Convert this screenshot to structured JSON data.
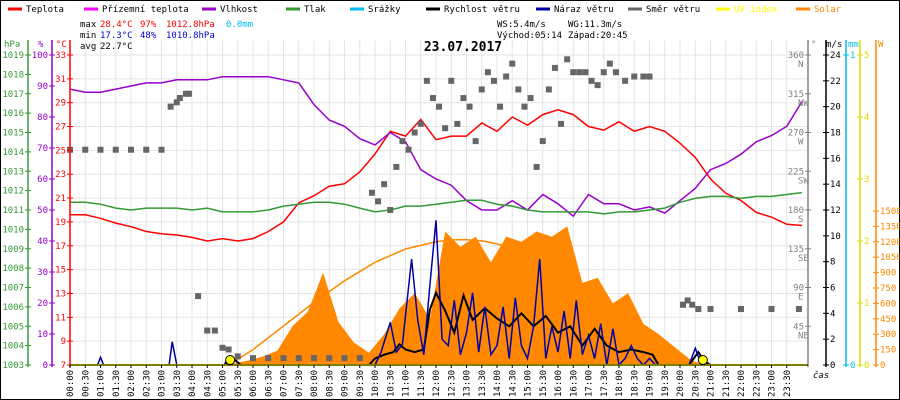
{
  "chart_data": {
    "type": "line",
    "title": "23.07.2017",
    "xlabel": "čas",
    "legend": {
      "placement": "top",
      "items": [
        {
          "name": "Teplota",
          "color": "#ff0000"
        },
        {
          "name": "Přízemní teplota",
          "color": "#ff00ff"
        },
        {
          "name": "Vlhkost",
          "color": "#9900cc"
        },
        {
          "name": "Tlak",
          "color": "#339933"
        },
        {
          "name": "Srážky",
          "color": "#00bbee"
        },
        {
          "name": "Rychlost větru",
          "color": "#000000"
        },
        {
          "name": "Náraz větru",
          "color": "#0000aa"
        },
        {
          "name": "Směr větru",
          "color": "#666666"
        },
        {
          "name": "UV index",
          "color": "#ffff00"
        },
        {
          "name": "Solar",
          "color": "#ff8800"
        }
      ]
    },
    "stats": {
      "max": {
        "label": "max",
        "temp": "28.4°C",
        "hum": "97%",
        "press": "1012.8hPa",
        "rain": "0.0mm"
      },
      "min": {
        "label": "min",
        "temp": "17.3°C",
        "hum": "48%",
        "press": "1010.8hPa"
      },
      "avg": {
        "label": "avg",
        "temp": "22.7°C"
      },
      "ws": "WS:5.4m/s",
      "wg": "WG:11.3m/s",
      "sunrise": "Východ:05:14",
      "sunset": "Západ:20:45"
    },
    "x_ticks": [
      "00:00",
      "00:30",
      "01:00",
      "01:30",
      "02:00",
      "02:30",
      "03:00",
      "03:30",
      "04:00",
      "04:30",
      "05:00",
      "05:30",
      "06:00",
      "06:30",
      "07:00",
      "07:30",
      "08:00",
      "08:30",
      "09:00",
      "09:30",
      "10:00",
      "10:30",
      "11:00",
      "11:30",
      "12:00",
      "12:30",
      "13:00",
      "13:30",
      "14:00",
      "14:30",
      "15:00",
      "15:30",
      "16:00",
      "16:30",
      "17:00",
      "17:30",
      "18:00",
      "18:30",
      "19:00",
      "19:30",
      "20:00",
      "20:30",
      "21:00",
      "21:30",
      "22:00",
      "22:30",
      "23:00",
      "23:30"
    ],
    "axes": {
      "pressure": {
        "unit": "hPa",
        "range": [
          1003,
          1019
        ],
        "ticks": [
          1003,
          1004,
          1005,
          1006,
          1007,
          1008,
          1009,
          1010,
          1011,
          1012,
          1013,
          1014,
          1015,
          1016,
          1017,
          1018,
          1019
        ],
        "color": "#339933"
      },
      "humidity": {
        "unit": "%",
        "range": [
          0,
          100
        ],
        "ticks": [
          0,
          10,
          20,
          30,
          40,
          50,
          60,
          70,
          80,
          90,
          100
        ],
        "color": "#9900cc"
      },
      "temperature": {
        "unit": "°C",
        "range": [
          7,
          33
        ],
        "ticks": [
          7,
          9,
          11,
          13,
          15,
          17,
          19,
          21,
          23,
          25,
          27,
          29,
          31,
          33
        ],
        "color": "#ff0000"
      },
      "direction": {
        "unit": "°",
        "range": [
          0,
          360
        ],
        "ticks": [
          {
            "v": 45,
            "l": "45",
            "d": "NE"
          },
          {
            "v": 90,
            "l": "90",
            "d": "E"
          },
          {
            "v": 135,
            "l": "135",
            "d": "SE"
          },
          {
            "v": 180,
            "l": "180",
            "d": "S"
          },
          {
            "v": 225,
            "l": "225",
            "d": "SW"
          },
          {
            "v": 270,
            "l": "270",
            "d": "W"
          },
          {
            "v": 315,
            "l": "315",
            "d": "NW"
          },
          {
            "v": 360,
            "l": "360",
            "d": "N"
          }
        ],
        "color": "#808080"
      },
      "wind": {
        "unit": "m/s",
        "range": [
          0,
          24
        ],
        "ticks": [
          0,
          2,
          4,
          6,
          8,
          10,
          12,
          14,
          16,
          18,
          20,
          22,
          24
        ],
        "color": "#000000"
      },
      "rain": {
        "unit": "mm",
        "range": [
          0,
          1
        ],
        "ticks": [
          0,
          1
        ],
        "color": "#00bbee"
      },
      "uv": {
        "unit": "",
        "range": [
          0,
          5
        ],
        "ticks": [
          0,
          1,
          2,
          3,
          4,
          5
        ],
        "color": "#dddd00"
      },
      "solar": {
        "unit": "W",
        "range": [
          0,
          3000
        ],
        "ticks": [
          0,
          150,
          300,
          450,
          600,
          750,
          900,
          1050,
          1200,
          1350,
          1500
        ],
        "color": "#ff8800"
      }
    },
    "series": [
      {
        "name": "Teplota",
        "axis": "temperature",
        "x": [
          0,
          0.5,
          1,
          1.5,
          2,
          2.5,
          3,
          3.5,
          4,
          4.5,
          5,
          5.5,
          6,
          6.5,
          7,
          7.5,
          8,
          8.5,
          9,
          9.5,
          10,
          10.5,
          11,
          11.5,
          12,
          12.5,
          13,
          13.5,
          14,
          14.5,
          15,
          15.5,
          16,
          16.5,
          17,
          17.5,
          18,
          18.5,
          19,
          19.5,
          20,
          20.5,
          21,
          21.5,
          22,
          22.5,
          23,
          23.5,
          24
        ],
        "values": [
          19.6,
          19.6,
          19.3,
          18.9,
          18.6,
          18.2,
          18.0,
          17.9,
          17.7,
          17.4,
          17.6,
          17.4,
          17.6,
          18.2,
          19.0,
          20.6,
          21.2,
          22.0,
          22.2,
          23.2,
          24.7,
          26.6,
          26.2,
          27.6,
          25.9,
          26.2,
          26.2,
          27.3,
          26.6,
          27.8,
          27.1,
          28.0,
          28.4,
          28.0,
          27.0,
          26.7,
          27.4,
          26.6,
          27.0,
          26.6,
          25.6,
          24.4,
          22.6,
          21.4,
          20.8,
          19.8,
          19.4,
          18.8,
          18.7
        ]
      },
      {
        "name": "Vlhkost",
        "axis": "humidity",
        "x": [
          0,
          0.5,
          1,
          1.5,
          2,
          2.5,
          3,
          3.5,
          4,
          4.5,
          5,
          5.5,
          6,
          6.5,
          7,
          7.5,
          8,
          8.5,
          9,
          9.5,
          10,
          10.5,
          11,
          11.5,
          12,
          12.5,
          13,
          13.5,
          14,
          14.5,
          15,
          15.5,
          16,
          16.5,
          17,
          17.5,
          18,
          18.5,
          19,
          19.5,
          20,
          20.5,
          21,
          21.5,
          22,
          22.5,
          23,
          23.5,
          24
        ],
        "values": [
          89,
          88,
          88,
          89,
          90,
          91,
          91,
          92,
          92,
          92,
          93,
          93,
          93,
          93,
          92,
          91,
          84,
          79,
          77,
          73,
          71,
          75,
          72,
          63,
          60,
          58,
          53,
          50,
          50,
          53,
          50,
          55,
          52,
          48,
          55,
          52,
          52,
          50,
          51,
          49,
          53,
          57,
          63,
          65,
          68,
          72,
          74,
          77,
          85
        ]
      },
      {
        "name": "Tlak",
        "axis": "pressure",
        "x": [
          0,
          0.5,
          1,
          1.5,
          2,
          2.5,
          3,
          3.5,
          4,
          4.5,
          5,
          5.5,
          6,
          6.5,
          7,
          7.5,
          8,
          8.5,
          9,
          9.5,
          10,
          10.5,
          11,
          11.5,
          12,
          12.5,
          13,
          13.5,
          14,
          14.5,
          15,
          15.5,
          16,
          16.5,
          17,
          17.5,
          18,
          18.5,
          19,
          19.5,
          20,
          20.5,
          21,
          21.5,
          22,
          22.5,
          23,
          23.5,
          24
        ],
        "values": [
          1011.4,
          1011.4,
          1011.3,
          1011.1,
          1011.0,
          1011.1,
          1011.1,
          1011.1,
          1011.0,
          1011.1,
          1010.9,
          1010.9,
          1010.9,
          1011.0,
          1011.2,
          1011.3,
          1011.4,
          1011.4,
          1011.3,
          1011.1,
          1010.9,
          1011.0,
          1011.2,
          1011.2,
          1011.3,
          1011.4,
          1011.5,
          1011.5,
          1011.3,
          1011.2,
          1011.0,
          1010.9,
          1010.9,
          1010.9,
          1010.9,
          1010.8,
          1010.9,
          1010.9,
          1011.0,
          1011.1,
          1011.4,
          1011.6,
          1011.7,
          1011.7,
          1011.6,
          1011.7,
          1011.7,
          1011.8,
          1011.9
        ]
      },
      {
        "name": "Rychlost větru",
        "axis": "wind",
        "x": [
          5.1,
          5.3,
          5.6,
          6,
          7,
          8,
          9,
          9.8,
          10.0,
          10.3,
          10.6,
          10.8,
          11.0,
          11.3,
          11.6,
          11.8,
          12.0,
          12.3,
          12.6,
          12.9,
          13.2,
          13.6,
          14.0,
          14.4,
          14.8,
          15.2,
          15.6,
          16.0,
          16.4,
          16.8,
          17.2,
          17.6,
          18.0,
          18.4,
          18.8,
          19.1,
          19.3,
          19.6,
          20.0,
          20.3,
          20.6,
          20.8,
          21.0
        ],
        "values": [
          0,
          0.6,
          0,
          0,
          0,
          0,
          0,
          0,
          0.5,
          0.8,
          1.0,
          1.6,
          1.2,
          1.0,
          1.2,
          4.3,
          5.6,
          4.2,
          2.5,
          5.4,
          3.5,
          4.4,
          3.6,
          3.0,
          4.0,
          3.0,
          3.8,
          2.5,
          3.0,
          1.5,
          2.8,
          1.5,
          1.0,
          1.2,
          1.0,
          0.8,
          0,
          0,
          0,
          0,
          1.0,
          0.3,
          0
        ]
      },
      {
        "name": "Náraz větru",
        "axis": "wind",
        "x": [
          0.9,
          1.0,
          1.1,
          3.25,
          3.35,
          3.5,
          5.05,
          5.2,
          5.35,
          10.0,
          10.2,
          10.5,
          10.7,
          10.9,
          11.2,
          11.4,
          11.6,
          11.8,
          12.0,
          12.2,
          12.4,
          12.6,
          12.8,
          13.0,
          13.2,
          13.4,
          13.6,
          13.8,
          14.0,
          14.2,
          14.4,
          14.6,
          14.8,
          15.0,
          15.2,
          15.4,
          15.6,
          15.8,
          16.0,
          16.2,
          16.4,
          16.6,
          16.8,
          17.0,
          17.2,
          17.4,
          17.6,
          17.8,
          18.0,
          18.2,
          18.4,
          18.6,
          18.8,
          19.0,
          19.2,
          20.3,
          20.5,
          20.7
        ],
        "values": [
          0,
          0.6,
          0,
          0,
          1.8,
          0,
          0,
          0.6,
          0,
          0,
          1.0,
          3.3,
          1.0,
          1.6,
          8.2,
          3.5,
          0.8,
          6.2,
          11.2,
          2.0,
          1.5,
          5.0,
          0.8,
          2.5,
          5.6,
          1.0,
          4.5,
          0.8,
          1.5,
          4.5,
          0.5,
          5.2,
          1.5,
          0.5,
          3.0,
          8.2,
          0.5,
          3.0,
          1.0,
          4.2,
          0.5,
          5.0,
          0.8,
          2.3,
          0.5,
          3.2,
          0,
          2.8,
          0,
          0.5,
          1.5,
          0.5,
          0,
          0.5,
          0,
          0,
          1.3,
          0
        ]
      },
      {
        "name": "Solar",
        "axis": "solar",
        "x": [
          5.3,
          5.8,
          6.3,
          6.8,
          7.3,
          7.8,
          8.3,
          8.8,
          9.3,
          9.8,
          10.3,
          10.8,
          11.3,
          11.8,
          12.3,
          12.8,
          13.3,
          13.8,
          14.3,
          14.8,
          15.3,
          15.8,
          16.3,
          16.8,
          17.3,
          17.8,
          18.3,
          18.8,
          19.3,
          19.8,
          20.3,
          20.7
        ],
        "values": [
          10,
          40,
          80,
          140,
          380,
          520,
          900,
          420,
          220,
          120,
          300,
          550,
          700,
          450,
          1300,
          1150,
          1250,
          1000,
          1250,
          1200,
          1300,
          1250,
          1350,
          800,
          850,
          600,
          700,
          400,
          300,
          180,
          60,
          0
        ]
      },
      {
        "name": "Solar teoretický",
        "axis": "solar",
        "x": [
          5.2,
          6,
          7,
          8,
          9,
          10,
          11,
          12,
          12.5,
          13,
          13.5,
          14,
          15,
          16,
          17,
          18,
          19,
          20,
          20.8
        ],
        "values": [
          0,
          150,
          380,
          610,
          820,
          1000,
          1130,
          1200,
          1220,
          1220,
          1210,
          1180,
          1090,
          920,
          710,
          470,
          250,
          60,
          0
        ]
      },
      {
        "name": "Směr větru",
        "axis": "direction",
        "type": "scatter",
        "x": [
          0.0,
          0.5,
          1.0,
          1.5,
          2.0,
          2.5,
          3.0,
          3.3,
          3.5,
          3.6,
          3.8,
          3.9,
          4.2,
          4.5,
          4.75,
          5.0,
          5.2,
          5.5,
          6,
          6.5,
          7,
          7.5,
          8,
          8.5,
          9,
          9.5,
          9.9,
          10.1,
          10.3,
          10.5,
          10.7,
          10.9,
          11.1,
          11.3,
          11.5,
          11.7,
          11.9,
          12.1,
          12.3,
          12.5,
          12.7,
          12.9,
          13.1,
          13.3,
          13.5,
          13.7,
          13.9,
          14.1,
          14.3,
          14.5,
          14.7,
          14.9,
          15.1,
          15.3,
          15.5,
          15.7,
          15.9,
          16.1,
          16.3,
          16.5,
          16.7,
          16.9,
          17.1,
          17.3,
          17.5,
          17.7,
          17.9,
          18.2,
          18.5,
          18.8,
          19.0,
          20.1,
          20.25,
          20.4,
          20.6,
          21,
          22,
          23,
          23.9
        ],
        "values": [
          250,
          250,
          250,
          250,
          250,
          250,
          250,
          300,
          305,
          310,
          315,
          315,
          80,
          40,
          40,
          20,
          18,
          10,
          8,
          8,
          8,
          8,
          8,
          8,
          8,
          8,
          200,
          190,
          210,
          180,
          230,
          260,
          250,
          270,
          280,
          330,
          310,
          300,
          275,
          330,
          280,
          310,
          300,
          260,
          320,
          340,
          330,
          300,
          335,
          350,
          320,
          300,
          310,
          230,
          260,
          320,
          345,
          280,
          355,
          340,
          340,
          340,
          330,
          325,
          340,
          350,
          340,
          330,
          335,
          335,
          335,
          70,
          75,
          70,
          65,
          65,
          65,
          65,
          65
        ]
      }
    ]
  }
}
